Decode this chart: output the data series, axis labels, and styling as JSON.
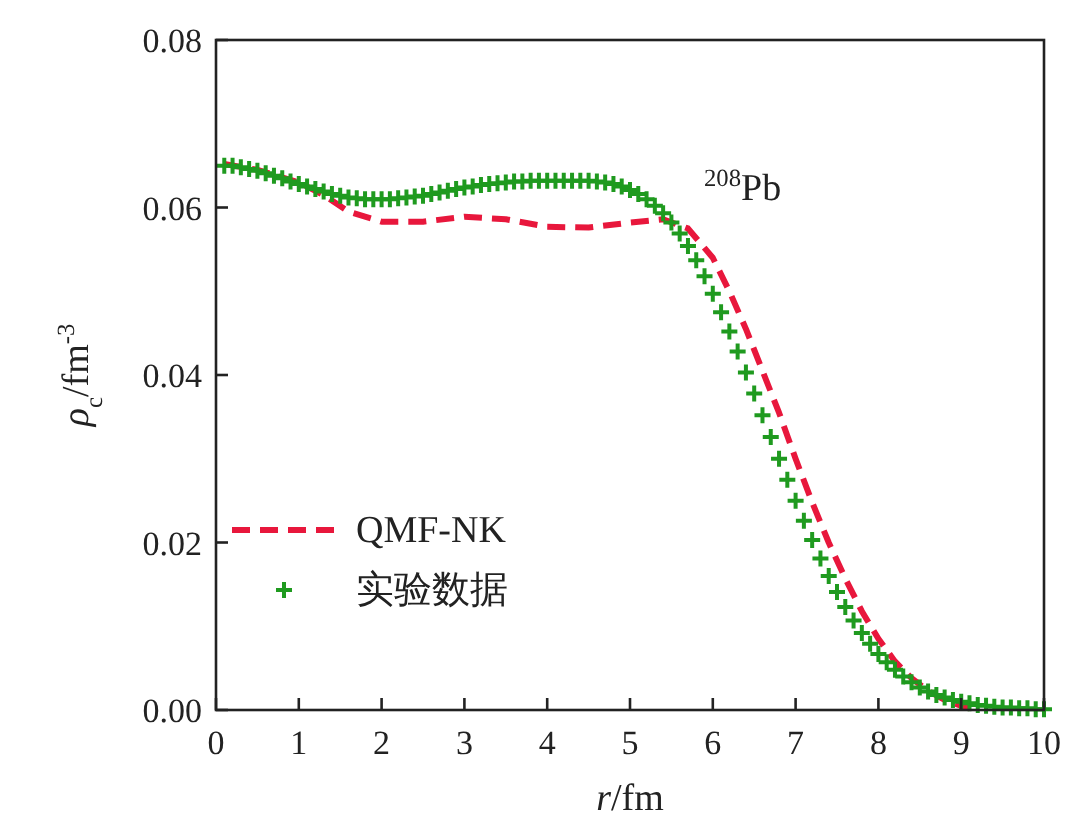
{
  "chart_data": {
    "type": "line",
    "xlabel": "*r*/fm",
    "ylabel": "*ρ*$_{c}$/fm$^{-3}$",
    "annotations": [
      "$^{208}$Pb"
    ],
    "xlim": [
      0,
      10
    ],
    "xticks": [
      0,
      1,
      2,
      3,
      4,
      5,
      6,
      7,
      8,
      9,
      10
    ],
    "ylim": [
      0,
      0.08
    ],
    "yticks": [
      {
        "value": 0,
        "label": "0.00"
      },
      {
        "value": 0.02,
        "label": "0.02"
      },
      {
        "value": 0.04,
        "label": "0.04"
      },
      {
        "value": 0.06,
        "label": "0.06"
      },
      {
        "value": 0.08,
        "label": "0.08"
      }
    ],
    "grid": false,
    "legend": "bottom left",
    "series": [
      {
        "name": "QMF-NK",
        "type": "line",
        "color": "#e8173c",
        "line_style": "dashed",
        "marker": "none",
        "x": [
          0.1,
          0.5,
          1.0,
          1.3,
          1.6,
          2.0,
          2.5,
          3.0,
          3.5,
          4.0,
          4.5,
          5.0,
          5.4,
          5.7,
          6.0,
          6.2,
          6.4,
          6.6,
          6.8,
          7.0,
          7.2,
          7.4,
          7.6,
          7.8,
          8.0,
          8.2,
          8.4,
          8.6,
          8.8,
          9.0,
          9.1
        ],
        "values": [
          0.0652,
          0.0645,
          0.063,
          0.0615,
          0.0595,
          0.0583,
          0.0583,
          0.0589,
          0.0586,
          0.0577,
          0.0576,
          0.0582,
          0.0586,
          0.0575,
          0.054,
          0.05,
          0.0455,
          0.0405,
          0.0355,
          0.03,
          0.0248,
          0.02,
          0.0157,
          0.0118,
          0.0085,
          0.0058,
          0.0038,
          0.0023,
          0.0012,
          0.0005,
          0.0002
        ]
      },
      {
        "name": "实验数据",
        "type": "scatter",
        "color": "#1f9a1f",
        "marker": "cross",
        "x": [
          0.1,
          0.2,
          0.3,
          0.4,
          0.5,
          0.6,
          0.7,
          0.8,
          0.9,
          1.0,
          1.1,
          1.2,
          1.3,
          1.4,
          1.5,
          1.6,
          1.7,
          1.8,
          1.9,
          2.0,
          2.1,
          2.2,
          2.3,
          2.4,
          2.5,
          2.6,
          2.7,
          2.8,
          2.9,
          3.0,
          3.1,
          3.2,
          3.3,
          3.4,
          3.5,
          3.6,
          3.7,
          3.8,
          3.9,
          4.0,
          4.1,
          4.2,
          4.3,
          4.4,
          4.5,
          4.6,
          4.7,
          4.8,
          4.9,
          5.0,
          5.1,
          5.2,
          5.3,
          5.4,
          5.5,
          5.6,
          5.7,
          5.8,
          5.9,
          6.0,
          6.1,
          6.2,
          6.3,
          6.4,
          6.5,
          6.6,
          6.7,
          6.8,
          6.9,
          7.0,
          7.1,
          7.2,
          7.3,
          7.4,
          7.5,
          7.6,
          7.7,
          7.8,
          7.9,
          8.0,
          8.1,
          8.2,
          8.3,
          8.4,
          8.5,
          8.6,
          8.7,
          8.8,
          8.9,
          9.0,
          9.1,
          9.2,
          9.3,
          9.4,
          9.5,
          9.6,
          9.7,
          9.8,
          9.9,
          10.0
        ],
        "values": [
          0.065,
          0.065,
          0.0648,
          0.0646,
          0.0644,
          0.0641,
          0.0638,
          0.0635,
          0.0631,
          0.0628,
          0.0625,
          0.0622,
          0.0619,
          0.0616,
          0.0614,
          0.0612,
          0.0611,
          0.061,
          0.061,
          0.061,
          0.061,
          0.0611,
          0.0612,
          0.0613,
          0.0614,
          0.0616,
          0.0618,
          0.062,
          0.0622,
          0.0624,
          0.0625,
          0.0627,
          0.0628,
          0.0629,
          0.063,
          0.0631,
          0.0631,
          0.0632,
          0.0632,
          0.0632,
          0.0632,
          0.0632,
          0.0632,
          0.0632,
          0.0632,
          0.0631,
          0.063,
          0.0628,
          0.0625,
          0.0621,
          0.0616,
          0.061,
          0.0602,
          0.0593,
          0.0582,
          0.0569,
          0.0554,
          0.0537,
          0.0518,
          0.0497,
          0.0475,
          0.0452,
          0.0428,
          0.0403,
          0.0378,
          0.0352,
          0.0326,
          0.03,
          0.0275,
          0.025,
          0.0226,
          0.0203,
          0.0181,
          0.016,
          0.0141,
          0.0123,
          0.0107,
          0.0092,
          0.0079,
          0.0067,
          0.0057,
          0.0048,
          0.004,
          0.0033,
          0.0027,
          0.0022,
          0.0018,
          0.0015,
          0.0012,
          0.001,
          0.0008,
          0.0006,
          0.0005,
          0.0004,
          0.0003,
          0.0003,
          0.0002,
          0.0002,
          0.0001,
          0.0001
        ]
      }
    ]
  }
}
